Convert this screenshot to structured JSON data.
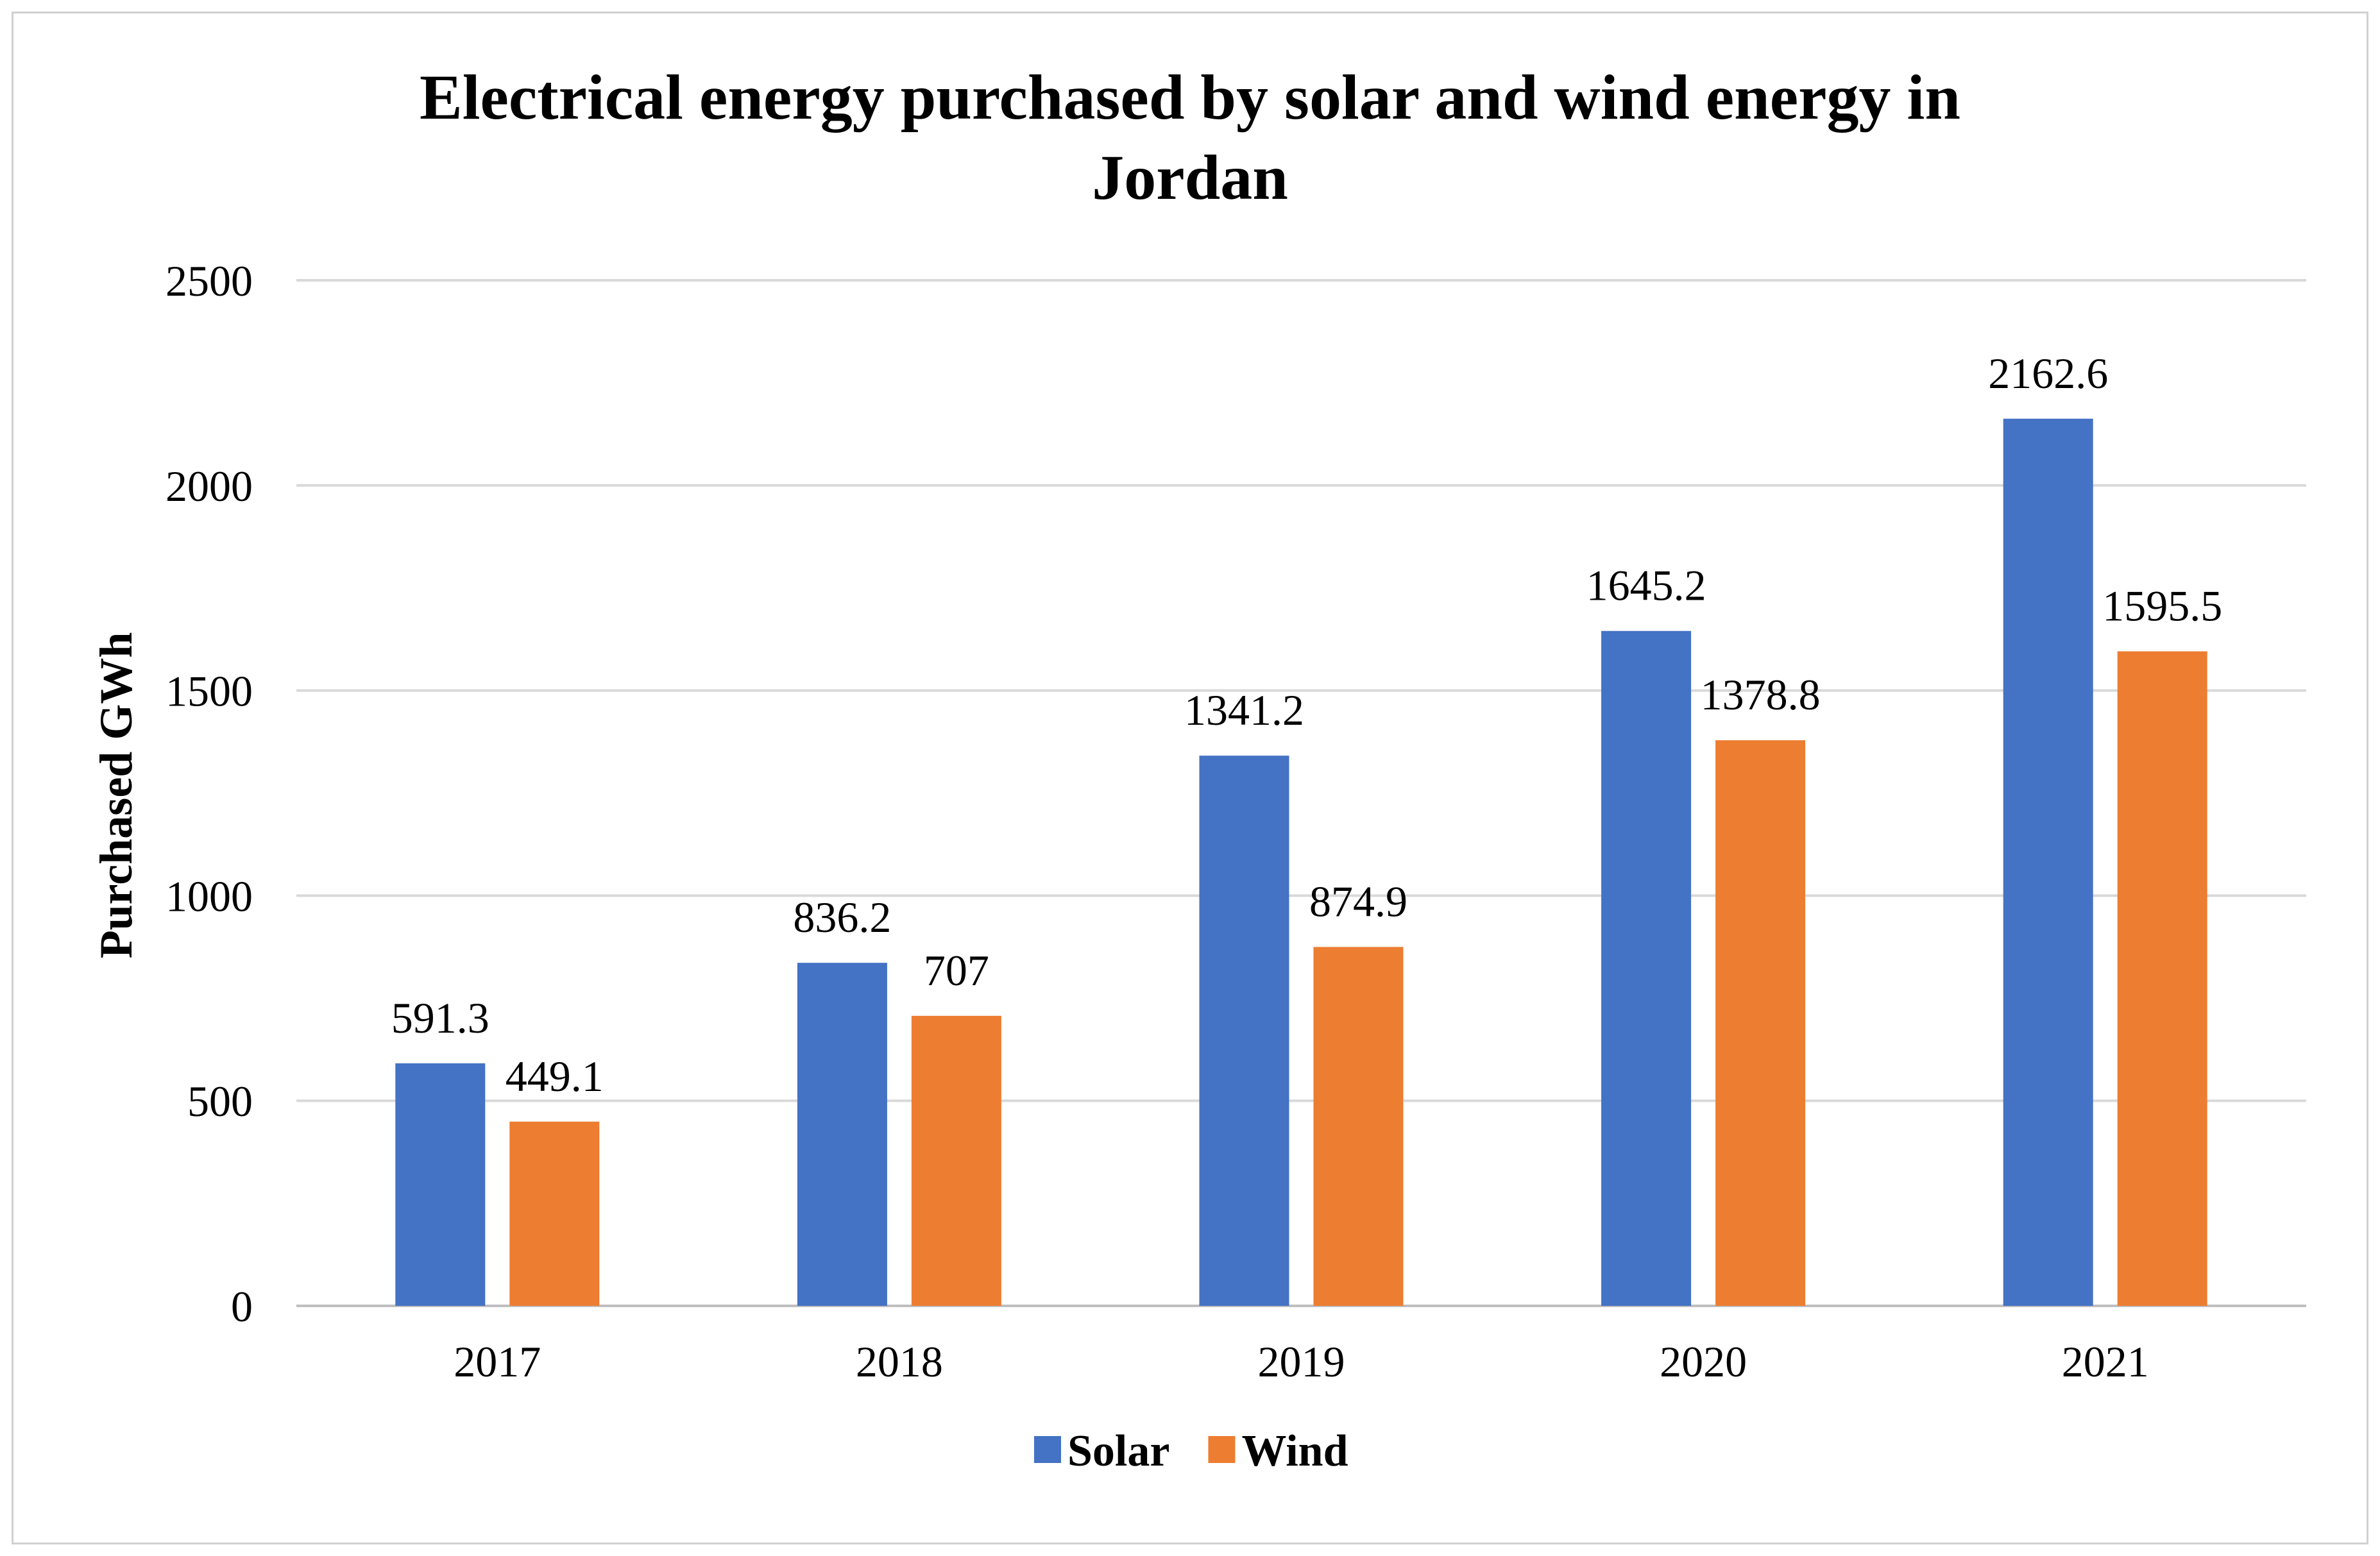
{
  "chart_data": {
    "type": "bar",
    "title_line1": "Electrical energy purchased by solar and wind energy in",
    "title_line2": "Jordan",
    "xlabel": "",
    "ylabel": "Purchased GWh",
    "categories": [
      "2017",
      "2018",
      "2019",
      "2020",
      "2021"
    ],
    "ylim": [
      0,
      2500
    ],
    "yticks": [
      0,
      500,
      1000,
      1500,
      2000,
      2500
    ],
    "grid": true,
    "legend_position": "bottom",
    "series": [
      {
        "name": "Solar",
        "color": "#4472C4",
        "values": [
          591.3,
          836.2,
          1341.2,
          1645.2,
          2162.6
        ],
        "labels": [
          "591.3",
          "836.2",
          "1341.2",
          "1645.2",
          "2162.6"
        ]
      },
      {
        "name": "Wind",
        "color": "#ED7D31",
        "values": [
          449.1,
          707,
          874.9,
          1378.8,
          1595.5
        ],
        "labels": [
          "449.1",
          "707",
          "874.9",
          "1378.8",
          "1595.5"
        ]
      }
    ]
  }
}
